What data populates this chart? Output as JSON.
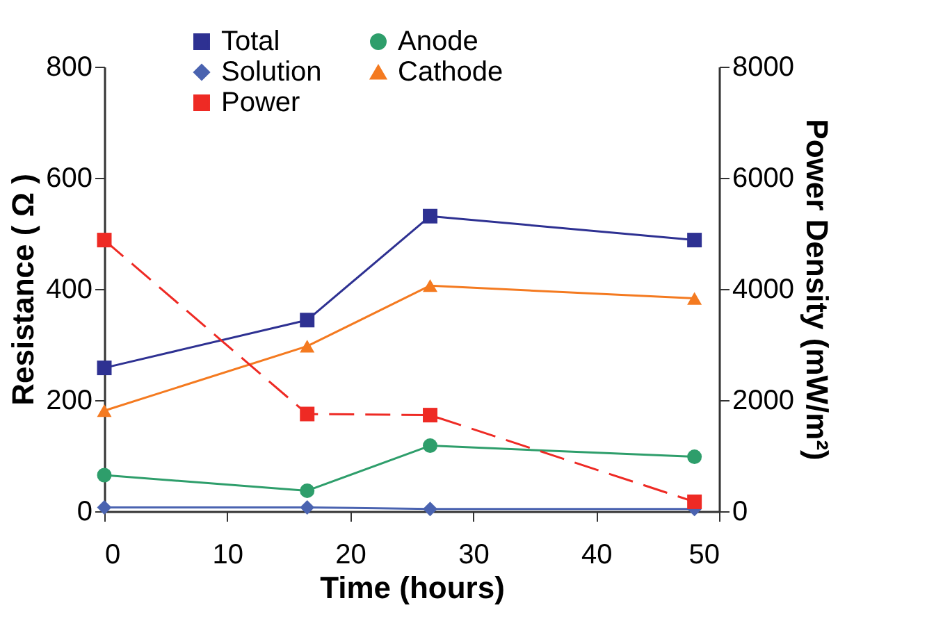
{
  "chart_data": {
    "type": "line",
    "xlabel": "Time (hours)",
    "ylabel": "Resistance ( Ω )",
    "y2label": "Power Density (mW/m²)",
    "x": [
      0,
      16.5,
      26.5,
      48
    ],
    "xlim": [
      0,
      50
    ],
    "xticks": [
      0,
      10,
      20,
      30,
      40,
      50
    ],
    "ylim": [
      0,
      800
    ],
    "yticks": [
      0,
      200,
      400,
      600,
      800
    ],
    "y2lim": [
      0,
      8000
    ],
    "y2ticks": [
      0,
      2000,
      4000,
      6000,
      8000
    ],
    "grid": false,
    "legend": "top",
    "series": [
      {
        "name": "Total",
        "color": "#2e3192",
        "marker": "square",
        "line_style": "solid",
        "values": [
          258,
          344,
          531,
          488
        ]
      },
      {
        "name": "Anode",
        "color": "#2e9e6b",
        "marker": "circle",
        "line_style": "solid",
        "values": [
          65,
          37,
          118,
          98
        ]
      },
      {
        "name": "Solution",
        "color": "#4a63b0",
        "marker": "diamond",
        "line_style": "solid",
        "values": [
          7,
          7,
          4,
          4
        ]
      },
      {
        "name": "Cathode",
        "color": "#f47a20",
        "marker": "triangle",
        "line_style": "solid",
        "values": [
          181,
          297,
          406,
          383
        ]
      },
      {
        "name": "Power",
        "color": "#ee2a24",
        "marker": "square",
        "line_style": "dashed",
        "axis": "y2",
        "values": [
          4880,
          1750,
          1730,
          170
        ]
      }
    ]
  }
}
